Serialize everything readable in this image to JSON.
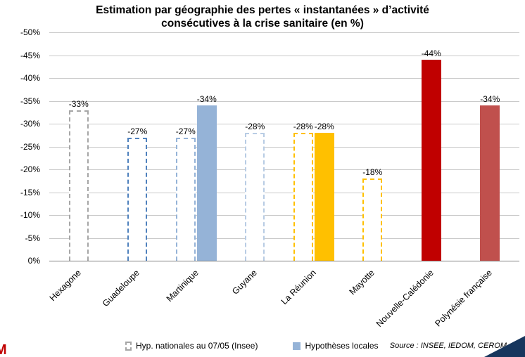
{
  "title": {
    "line1": "Estimation par géographie des pertes « instantanées » d’activité",
    "line2": "consécutives à la crise sanitaire (en %)"
  },
  "chart_data": {
    "type": "bar",
    "title": "Estimation par géographie des pertes « instantanées » d’activité consécutives à la crise sanitaire (en %)",
    "xlabel": "",
    "ylabel": "",
    "ylim": [
      0,
      -50
    ],
    "yticks": [
      "-50%",
      "-45%",
      "-40%",
      "-35%",
      "-30%",
      "-25%",
      "-20%",
      "-15%",
      "-10%",
      "-5%",
      "0%"
    ],
    "grid": true,
    "legend_position": "bottom",
    "categories": [
      "Hexagone",
      "Guadeloupe",
      "Martinique",
      "Guyane",
      "La Réunion",
      "Mayotte",
      "Nouvelle-Calédonie",
      "Polynésie française"
    ],
    "series": [
      {
        "name": "Hyp. nationales au 07/05 (Insee)",
        "style": "dashed",
        "values": [
          -33,
          -27,
          -27,
          -28,
          -28,
          -18,
          null,
          null
        ]
      },
      {
        "name": "Hypothèses locales",
        "style": "solid",
        "values": [
          null,
          null,
          -34,
          null,
          -28,
          null,
          -44,
          -34
        ]
      }
    ],
    "bar_colors": {
      "dashed": [
        "#a6a6a6",
        "#4f81bd",
        "#95b3d7",
        "#b8cce4",
        "#ffc000",
        "#ffc000",
        null,
        null
      ],
      "solid": [
        null,
        null,
        "#95b3d7",
        null,
        "#ffc000",
        null,
        "#c00000",
        "#c0504d"
      ]
    },
    "data_labels": {
      "dashed": [
        "-33%",
        "-27%",
        "-27%",
        "-28%",
        "-28%",
        "-18%",
        null,
        null
      ],
      "solid": [
        null,
        null,
        "-34%",
        null,
        "-28%",
        null,
        "-44%",
        "-34%"
      ]
    }
  },
  "legend": {
    "items": [
      {
        "label": "Hyp. nationales au 07/05 (Insee)",
        "style": "dashed",
        "color": "#a6a6a6"
      },
      {
        "label": "Hypothèses locales",
        "style": "solid",
        "color": "#95b3d7"
      }
    ]
  },
  "source_note": "Source : INSEE, IEDOM, CEROM",
  "branding": {
    "logo_fragment": "M",
    "logo_color": "#c00000",
    "corner_color": "#17365d"
  }
}
